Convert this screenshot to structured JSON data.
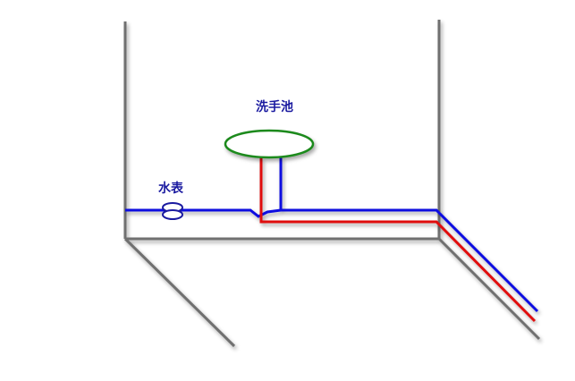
{
  "labels": {
    "sink": "洗手池",
    "water_meter": "水表"
  },
  "colors": {
    "wall": "#707070",
    "cold_pipe": "#1010e0",
    "hot_pipe": "#e01010",
    "sink_outline": "#1e8a1e",
    "label_text": "#1a1aa0"
  },
  "icons": {
    "water_meter": "water-meter-icon",
    "sink": "sink-basin-icon"
  }
}
